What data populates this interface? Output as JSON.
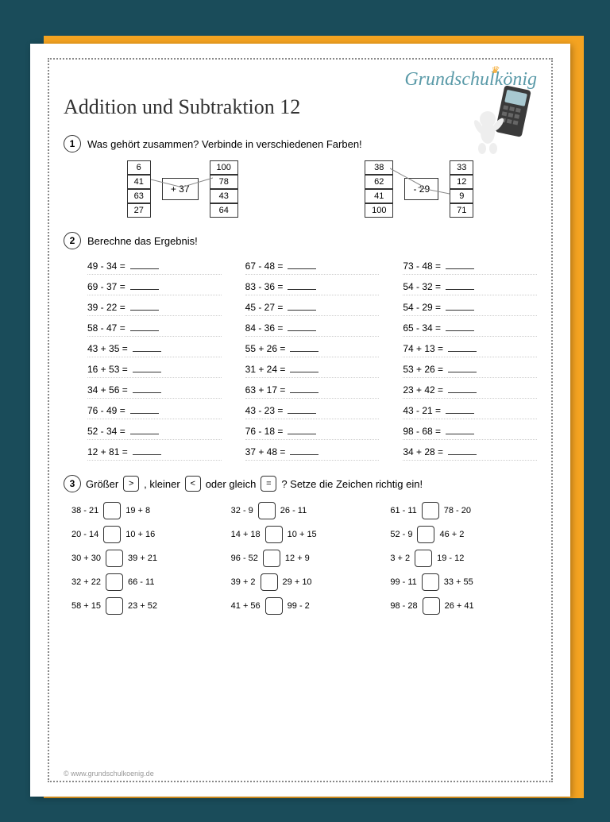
{
  "brand": "Grundschulkönig",
  "title": "Addition und Subtraktion 12",
  "footer": "© www.grundschulkoenig.de",
  "colors": {
    "page_bg": "#1a4c5a",
    "accent_orange": "#f4a321",
    "brand_color": "#5a9aa8",
    "paper": "#ffffff",
    "text": "#333333",
    "border_dotted": "#888888"
  },
  "ex1": {
    "num": "1",
    "prompt": "Was gehört zusammen? Verbinde in verschiedenen Farben!",
    "groups": [
      {
        "left": [
          "6",
          "41",
          "63",
          "27"
        ],
        "op": "+ 37",
        "right": [
          "100",
          "78",
          "43",
          "64"
        ]
      },
      {
        "left": [
          "38",
          "62",
          "41",
          "100"
        ],
        "op": "- 29",
        "right": [
          "33",
          "12",
          "9",
          "71"
        ]
      }
    ]
  },
  "ex2": {
    "num": "2",
    "prompt": "Berechne das Ergebnis!",
    "rows": [
      [
        "49 - 34 =",
        "67 - 48 =",
        "73 - 48 ="
      ],
      [
        "69 - 37 =",
        "83 - 36 =",
        "54 - 32 ="
      ],
      [
        "39 - 22 =",
        "45 - 27 =",
        "54 - 29 ="
      ],
      [
        "58 - 47 =",
        "84 - 36 =",
        "65 - 34 ="
      ],
      [
        "43 + 35 =",
        "55 + 26 =",
        "74 + 13 ="
      ],
      [
        "16 + 53 =",
        "31 + 24 =",
        "53 + 26 ="
      ],
      [
        "34 + 56 =",
        "63 + 17 =",
        "23 + 42 ="
      ],
      [
        "76 - 49 =",
        "43 - 23 =",
        "43 - 21 ="
      ],
      [
        "52 - 34 =",
        "76 - 18 =",
        "98 - 68 ="
      ],
      [
        "12 + 81 =",
        "37 + 48 =",
        "34 + 28 ="
      ]
    ]
  },
  "ex3": {
    "num": "3",
    "prompt_parts": [
      "Größer",
      ">",
      ", kleiner",
      "<",
      "oder gleich",
      "=",
      "? Setze die Zeichen richtig ein!"
    ],
    "rows": [
      [
        [
          "38 - 21",
          "19 + 8"
        ],
        [
          "32 - 9",
          "26 - 11"
        ],
        [
          "61 - 11",
          "78 - 20"
        ]
      ],
      [
        [
          "20 - 14",
          "10 + 16"
        ],
        [
          "14 + 18",
          "10 + 15"
        ],
        [
          "52 - 9",
          "46 + 2"
        ]
      ],
      [
        [
          "30 + 30",
          "39 + 21"
        ],
        [
          "96 - 52",
          "12 + 9"
        ],
        [
          "3 + 2",
          "19 - 12"
        ]
      ],
      [
        [
          "32 + 22",
          "66 - 11"
        ],
        [
          "39 + 2",
          "29 + 10"
        ],
        [
          "99 - 11",
          "33 + 55"
        ]
      ],
      [
        [
          "58 + 15",
          "23 + 52"
        ],
        [
          "41 + 56",
          "99 - 2"
        ],
        [
          "98 - 28",
          "26 + 41"
        ]
      ]
    ]
  }
}
